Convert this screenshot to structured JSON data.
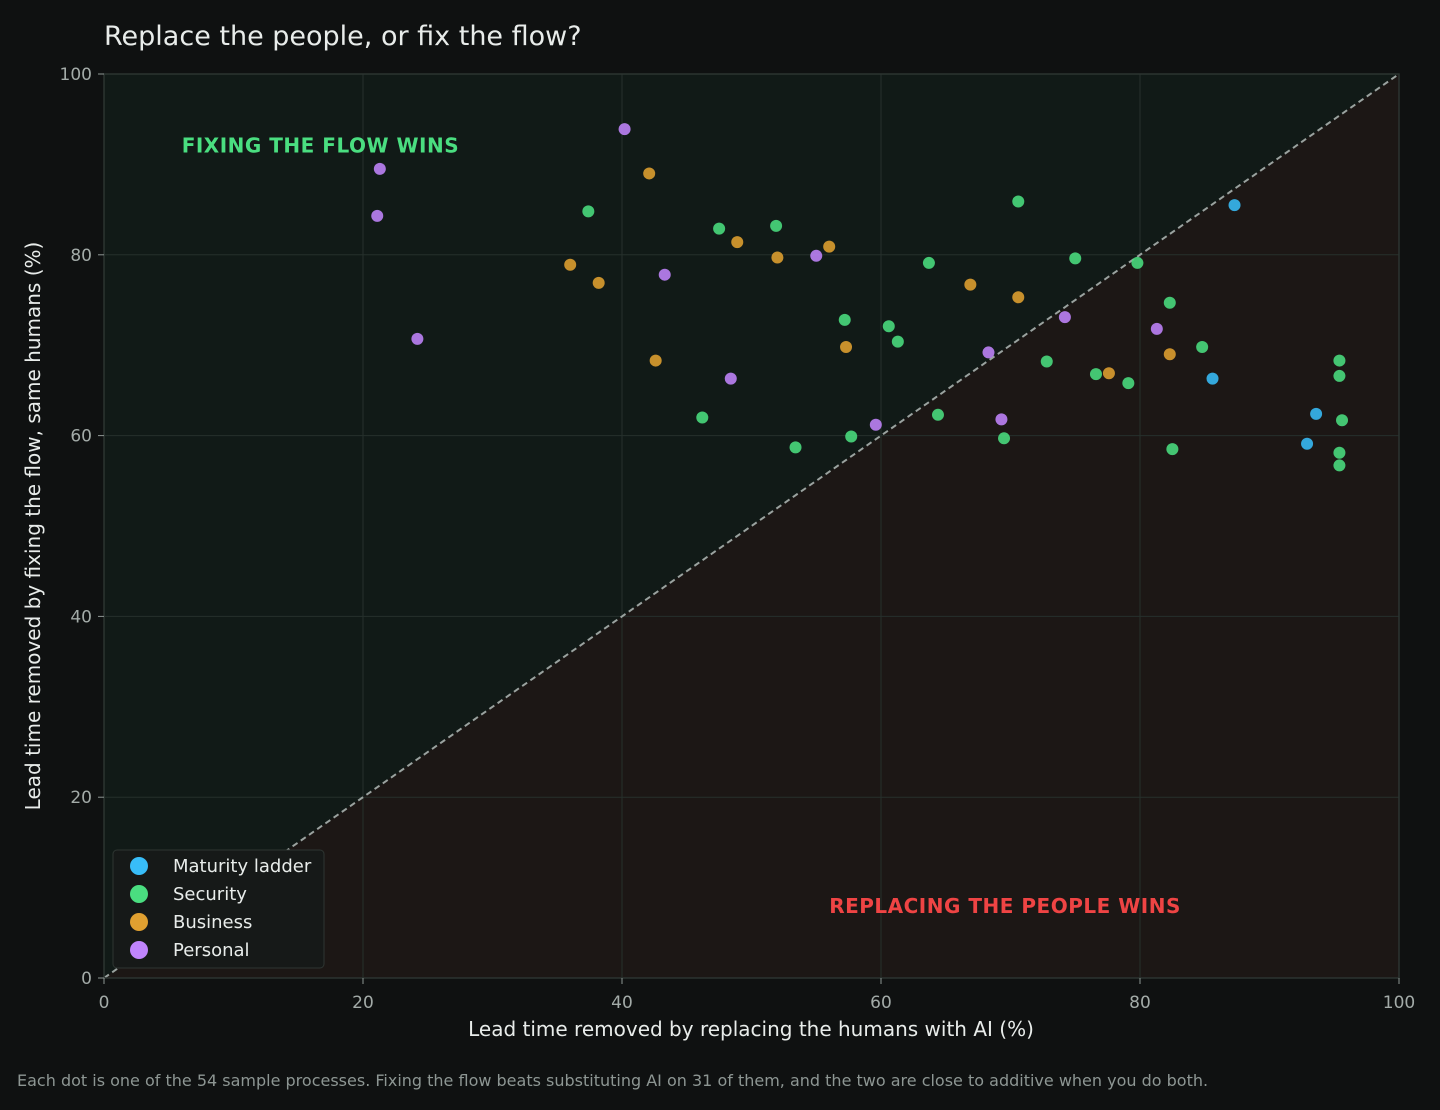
{
  "chart_data": {
    "type": "scatter",
    "title": "Replace the people, or fix the flow?",
    "xlabel": "Lead time removed by replacing the humans with AI  (%)",
    "ylabel": "Lead time removed by fixing the flow, same humans  (%)",
    "xlim": [
      0,
      100
    ],
    "ylim": [
      0,
      100
    ],
    "xticks": [
      "0",
      "20",
      "40",
      "60",
      "80",
      "100"
    ],
    "yticks": [
      "0",
      "20",
      "40",
      "60",
      "80",
      "100"
    ],
    "grid": true,
    "reference_line": "y = x",
    "legend_position": "bottom-left",
    "regions": {
      "upper_left": {
        "label": "FIXING THE FLOW WINS",
        "color": "#4ade80"
      },
      "lower_right": {
        "label": "REPLACING THE PEOPLE WINS",
        "color": "#ef4444"
      }
    },
    "series": [
      {
        "name": "Maturity ladder",
        "color": "#38bdf8",
        "points": [
          [
            87.3,
            85.5
          ],
          [
            85.6,
            66.3
          ],
          [
            93.6,
            62.4
          ],
          [
            92.9,
            59.1
          ]
        ]
      },
      {
        "name": "Security",
        "color": "#4ade80",
        "points": [
          [
            37.4,
            84.8
          ],
          [
            47.5,
            82.9
          ],
          [
            51.9,
            83.2
          ],
          [
            70.6,
            85.9
          ],
          [
            75.0,
            79.6
          ],
          [
            79.8,
            79.1
          ],
          [
            63.7,
            79.1
          ],
          [
            57.2,
            72.8
          ],
          [
            60.6,
            72.1
          ],
          [
            61.3,
            70.4
          ],
          [
            82.3,
            74.7
          ],
          [
            84.8,
            69.8
          ],
          [
            72.8,
            68.2
          ],
          [
            76.6,
            66.8
          ],
          [
            79.1,
            65.8
          ],
          [
            64.4,
            62.3
          ],
          [
            46.2,
            62.0
          ],
          [
            53.4,
            58.7
          ],
          [
            57.7,
            59.9
          ],
          [
            69.5,
            59.7
          ],
          [
            82.5,
            58.5
          ],
          [
            95.4,
            68.3
          ],
          [
            95.4,
            66.6
          ],
          [
            95.6,
            61.7
          ],
          [
            95.4,
            58.1
          ],
          [
            95.4,
            56.7
          ]
        ]
      },
      {
        "name": "Business",
        "color": "#e0a030",
        "points": [
          [
            42.1,
            89.0
          ],
          [
            48.9,
            81.4
          ],
          [
            56.0,
            80.9
          ],
          [
            52.0,
            79.7
          ],
          [
            36.0,
            78.9
          ],
          [
            38.2,
            76.9
          ],
          [
            66.9,
            76.7
          ],
          [
            70.6,
            75.3
          ],
          [
            57.3,
            69.8
          ],
          [
            42.6,
            68.3
          ],
          [
            77.6,
            66.9
          ],
          [
            82.3,
            69.0
          ]
        ]
      },
      {
        "name": "Personal",
        "color": "#c084fc",
        "points": [
          [
            40.2,
            93.9
          ],
          [
            21.3,
            89.5
          ],
          [
            21.1,
            84.3
          ],
          [
            43.3,
            77.8
          ],
          [
            55.0,
            79.9
          ],
          [
            24.2,
            70.7
          ],
          [
            48.4,
            66.3
          ],
          [
            59.6,
            61.2
          ],
          [
            68.3,
            69.2
          ],
          [
            74.2,
            73.1
          ],
          [
            81.3,
            71.8
          ],
          [
            69.3,
            61.8
          ]
        ]
      }
    ]
  },
  "footnote": "Each dot is one of the 54 sample processes. Fixing the flow beats substituting AI on 31 of them, and the two are close to additive when you do both."
}
